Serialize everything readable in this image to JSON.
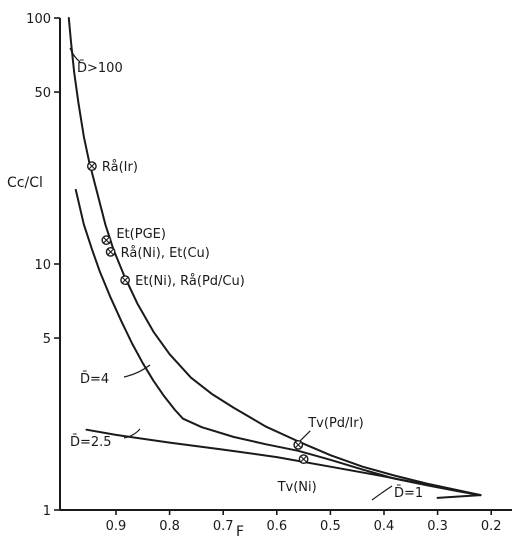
{
  "chart_data": {
    "type": "line",
    "title": "",
    "xlabel": "F",
    "ylabel": "Cc/Cl",
    "xlim": [
      1.0,
      0.2
    ],
    "x_direction": "decreasing",
    "ylim": [
      1,
      100
    ],
    "y_scale": "log",
    "grid": false,
    "legend": "none",
    "x_ticks": [
      0.9,
      0.8,
      0.7,
      0.6,
      0.5,
      0.4,
      0.3,
      0.2
    ],
    "x_tick_labels": [
      "0.9",
      "0.8",
      "0.7",
      "0.6",
      "0.5",
      "0.4",
      "0.3",
      "0.2"
    ],
    "y_ticks": [
      1,
      5,
      10,
      50,
      100
    ],
    "y_tick_labels": [
      "1",
      "5",
      "10",
      "50",
      "100"
    ],
    "series": [
      {
        "name": "D̄>100",
        "x": [
          0.988,
          0.984,
          0.978,
          0.97,
          0.96,
          0.95,
          0.935,
          0.92,
          0.905,
          0.885,
          0.86,
          0.83,
          0.8,
          0.76,
          0.72,
          0.68,
          0.62,
          0.56,
          0.5,
          0.44,
          0.38,
          0.32,
          0.26,
          0.22
        ],
        "y": [
          100,
          80,
          60,
          45,
          33,
          26,
          19.5,
          14.5,
          11.5,
          9.0,
          6.9,
          5.3,
          4.3,
          3.45,
          2.95,
          2.6,
          2.18,
          1.9,
          1.67,
          1.5,
          1.38,
          1.28,
          1.2,
          1.15
        ]
      },
      {
        "name": "D̄=4",
        "x": [
          0.975,
          0.96,
          0.945,
          0.93,
          0.91,
          0.89,
          0.87,
          0.85,
          0.83,
          0.81,
          0.79,
          0.775,
          0.74,
          0.68,
          0.62,
          0.56,
          0.5,
          0.44,
          0.38,
          0.32,
          0.26,
          0.22
        ],
        "y": [
          20,
          14.5,
          11.5,
          9.3,
          7.3,
          5.85,
          4.75,
          3.95,
          3.35,
          2.9,
          2.55,
          2.35,
          2.17,
          1.98,
          1.85,
          1.74,
          1.6,
          1.46,
          1.34,
          1.26,
          1.19,
          1.15
        ]
      },
      {
        "name": "D̄=2.5",
        "x": [
          0.955,
          0.9,
          0.8,
          0.7,
          0.6,
          0.5,
          0.4,
          0.3,
          0.22
        ],
        "y": [
          2.12,
          2.02,
          1.88,
          1.76,
          1.64,
          1.5,
          1.37,
          1.24,
          1.15
        ]
      },
      {
        "name": "D̄=1",
        "x": [
          0.3,
          0.22
        ],
        "y": [
          1.12,
          1.15
        ]
      }
    ],
    "annotations": [
      {
        "label": "Rå(Ir)",
        "x": 0.945,
        "y": 25
      },
      {
        "label": "Et(PGE)",
        "x": 0.918,
        "y": 12.5
      },
      {
        "label": "Rå(Ni), Et(Cu)",
        "x": 0.91,
        "y": 11.2
      },
      {
        "label": "Et(Ni), Rå(Pd/Cu)",
        "x": 0.883,
        "y": 8.6
      },
      {
        "label": "Tv(Pd/Ir)",
        "x": 0.56,
        "y": 1.84
      },
      {
        "label": "Tv(Ni)",
        "x": 0.55,
        "y": 1.61
      }
    ],
    "curve_labels": [
      "D̄>100",
      "D̄=4",
      "D̄=2.5",
      "D̄=1"
    ]
  }
}
